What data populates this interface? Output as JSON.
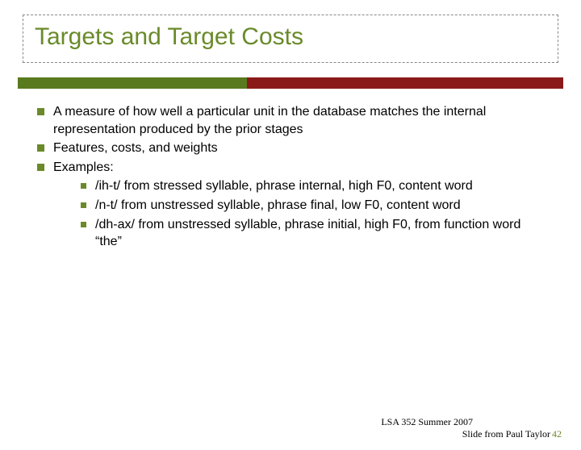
{
  "title": "Targets and Target Costs",
  "colors": {
    "title_color": "#6a8a2a",
    "bar_green": "#5a7a1f",
    "bar_red": "#8a1a1a",
    "bullet_color": "#6a8a2a",
    "page_number_color": "#6a8a2a",
    "background": "#ffffff"
  },
  "bullets": {
    "b0": "A measure of how well a particular unit in the database matches the internal representation produced by the prior stages",
    "b1": "Features, costs, and weights",
    "b2": "Examples:",
    "examples": {
      "e0": "/ih-t/ from stressed syllable, phrase internal, high F0, content word",
      "e1": "/n-t/ from unstressed syllable, phrase final, low F0, content word",
      "e2": "/dh-ax/ from unstressed syllable, phrase initial, high F0, from function word “the”"
    }
  },
  "footer": {
    "line1": "LSA 352 Summer 2007",
    "line2": "Slide from Paul Taylor",
    "page_number": "42"
  }
}
